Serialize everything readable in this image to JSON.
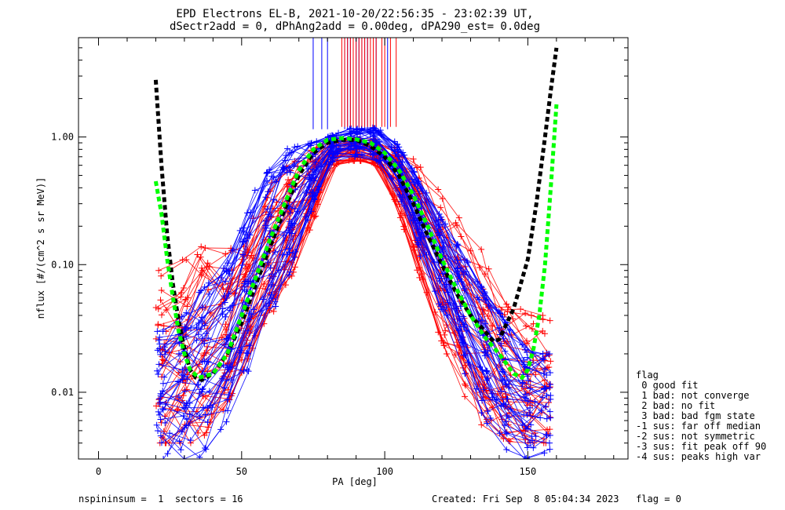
{
  "title": {
    "line1": "EPD Electrons EL-B, 2021-10-20/22:56:35 - 23:02:39 UT,",
    "line2": "dSectr2add = 0, dPhAng2add = 0.00deg, dPA290_est=   0.0deg"
  },
  "footer": {
    "left": "nspininsum =  1  sectors = 16",
    "right": "Created: Fri Sep  8 05:04:34 2023   flag = 0"
  },
  "legend": {
    "title": "flag",
    "items": [
      " 0 good fit",
      " 1 bad: not converge",
      " 2 bad: no fit",
      " 3 bad: bad fgm state",
      "-1 sus: far off median",
      "-2 sus: not symmetric",
      "-3 sus: fit peak off 90",
      "-4 sus: peaks high var"
    ]
  },
  "chart_data": {
    "type": "line",
    "xlabel": "PA [deg]",
    "ylabel": "nflux [#/(cm^2 s sr MeV)]",
    "xlim": [
      -7,
      185
    ],
    "ylim": [
      0.003,
      6
    ],
    "yscale": "log",
    "x_ticks": [
      0,
      50,
      100,
      150
    ],
    "x_tick_labels": [
      "0",
      "50",
      "100",
      "150"
    ],
    "y_ticks": [
      0.01,
      0.1,
      1.0
    ],
    "y_tick_labels": [
      "0.01",
      "0.10",
      "1.00"
    ],
    "colors": {
      "red": "#ff0000",
      "blue": "#0000ff",
      "black": "#000000",
      "green": "#00ff00"
    },
    "series": [
      {
        "color": "black",
        "style": "dashed",
        "x": [
          20,
          22,
          24,
          26,
          28,
          30,
          32,
          34,
          36,
          40,
          45,
          50,
          55,
          60,
          65,
          70,
          75,
          80,
          85,
          90,
          95,
          100,
          105,
          110,
          115,
          120,
          125,
          130,
          135,
          138,
          140,
          145,
          150,
          153,
          156,
          158,
          160
        ],
        "y": [
          2.8,
          0.6,
          0.17,
          0.07,
          0.036,
          0.022,
          0.015,
          0.013,
          0.0125,
          0.014,
          0.02,
          0.035,
          0.07,
          0.14,
          0.27,
          0.5,
          0.75,
          0.9,
          0.95,
          0.95,
          0.85,
          0.7,
          0.5,
          0.3,
          0.17,
          0.1,
          0.06,
          0.04,
          0.03,
          0.025,
          0.026,
          0.045,
          0.11,
          0.3,
          1.0,
          2.3,
          5.0
        ]
      },
      {
        "color": "green",
        "style": "dashed",
        "x": [
          20,
          22,
          24,
          26,
          28,
          30,
          32,
          35,
          40,
          45,
          50,
          55,
          60,
          65,
          70,
          75,
          80,
          85,
          90,
          95,
          100,
          105,
          110,
          115,
          120,
          125,
          130,
          135,
          140,
          145,
          148,
          150,
          152,
          154,
          156,
          158,
          160
        ],
        "y": [
          0.45,
          0.25,
          0.11,
          0.055,
          0.03,
          0.02,
          0.015,
          0.013,
          0.014,
          0.02,
          0.04,
          0.08,
          0.16,
          0.3,
          0.55,
          0.8,
          0.95,
          0.98,
          0.96,
          0.9,
          0.75,
          0.55,
          0.35,
          0.2,
          0.11,
          0.065,
          0.04,
          0.027,
          0.02,
          0.014,
          0.013,
          0.015,
          0.022,
          0.04,
          0.1,
          0.4,
          1.8
        ]
      }
    ],
    "bands": [
      {
        "color": "red",
        "note": "many individual red measurement traces (+ markers)",
        "x": [
          25,
          35,
          45,
          55,
          65,
          75,
          80,
          85,
          90,
          95,
          100,
          105,
          115,
          125,
          135,
          145,
          150
        ],
        "y_low": [
          0.004,
          0.004,
          0.008,
          0.025,
          0.06,
          0.2,
          0.55,
          0.65,
          0.65,
          0.65,
          0.5,
          0.25,
          0.05,
          0.012,
          0.005,
          0.004,
          0.004
        ],
        "y_high": [
          0.09,
          0.14,
          0.12,
          0.3,
          0.6,
          0.85,
          0.95,
          1.0,
          1.0,
          0.98,
          0.95,
          0.9,
          0.5,
          0.25,
          0.12,
          0.05,
          0.04
        ]
      },
      {
        "color": "blue",
        "note": "many individual blue measurement traces (+ markers)",
        "x": [
          25,
          35,
          45,
          55,
          65,
          75,
          80,
          85,
          90,
          95,
          100,
          105,
          115,
          125,
          135,
          145,
          150
        ],
        "y_low": [
          0.003,
          0.003,
          0.006,
          0.02,
          0.06,
          0.25,
          0.6,
          0.7,
          0.7,
          0.7,
          0.6,
          0.35,
          0.08,
          0.02,
          0.006,
          0.003,
          0.003
        ],
        "y_high": [
          0.03,
          0.06,
          0.1,
          0.4,
          0.8,
          0.9,
          1.0,
          1.1,
          1.2,
          1.2,
          1.1,
          0.85,
          0.35,
          0.15,
          0.06,
          0.03,
          0.02
        ]
      }
    ],
    "vertical_markers": [
      {
        "color": "blue",
        "x": [
          75,
          78,
          80,
          86,
          87,
          88,
          89,
          90,
          91,
          92,
          93,
          94,
          97,
          101
        ],
        "y_low": 1.15,
        "y_high": 6
      },
      {
        "color": "red",
        "x": [
          85,
          86,
          87,
          88,
          89,
          90,
          91,
          92,
          93,
          94,
          95,
          96,
          97,
          99,
          100,
          102,
          104
        ],
        "y_low": 1.2,
        "y_high": 6
      }
    ]
  }
}
